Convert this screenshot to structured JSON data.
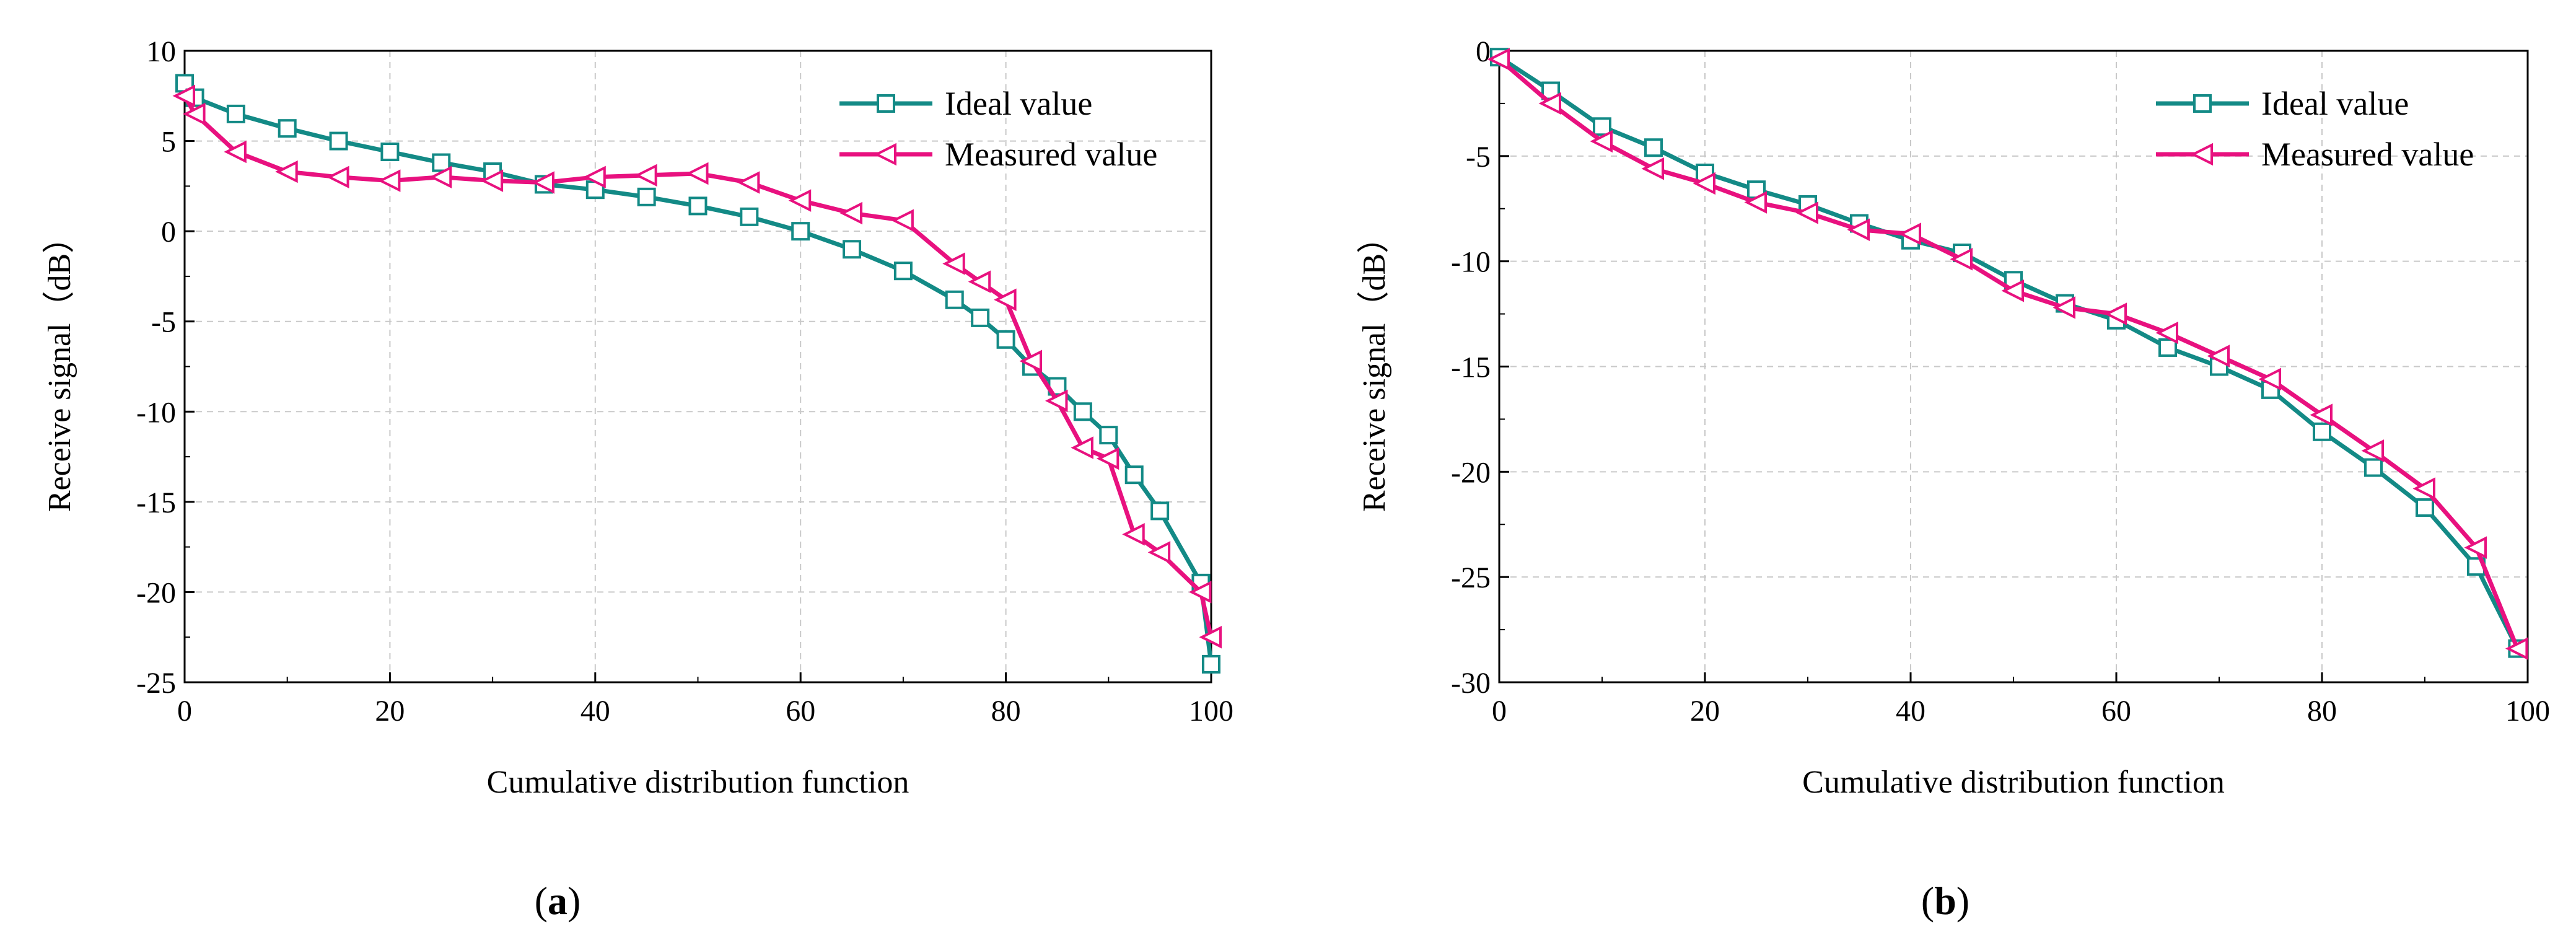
{
  "chart_data": [
    {
      "type": "line",
      "panel": "a",
      "caption": {
        "open": "(",
        "letter": "a",
        "close": ")"
      },
      "xlabel": "Cumulative distribution function",
      "ylabel": "Receive signal（dB）",
      "xlim": [
        0,
        100
      ],
      "ylim": [
        -25,
        10
      ],
      "xticks": [
        0,
        20,
        40,
        60,
        80,
        100
      ],
      "yticks": [
        10,
        5,
        0,
        -5,
        -10,
        -15,
        -20,
        -25
      ],
      "grid": true,
      "legend_position": "top-right",
      "series": [
        {
          "name": "Ideal value",
          "color": "#138a86",
          "marker": "square",
          "x": [
            0,
            1,
            5,
            10,
            15,
            20,
            25,
            30,
            35,
            40,
            45,
            50,
            55,
            60,
            65,
            70,
            75,
            77.5,
            80,
            82.5,
            85,
            87.5,
            90,
            92.5,
            95,
            99,
            100
          ],
          "y": [
            8.2,
            7.4,
            6.5,
            5.7,
            5.0,
            4.4,
            3.8,
            3.3,
            2.6,
            2.3,
            1.9,
            1.4,
            0.8,
            0.0,
            -1.0,
            -2.2,
            -3.8,
            -4.8,
            -6.0,
            -7.5,
            -8.6,
            -10.0,
            -11.3,
            -13.5,
            -15.5,
            -19.5,
            -24.0
          ]
        },
        {
          "name": "Measured value",
          "color": "#e8117f",
          "marker": "triangle-left",
          "x": [
            0,
            1,
            5,
            10,
            15,
            20,
            25,
            30,
            35,
            40,
            45,
            50,
            55,
            60,
            65,
            70,
            75,
            77.5,
            80,
            82.5,
            85,
            87.5,
            90,
            92.5,
            95,
            99,
            100
          ],
          "y": [
            7.5,
            6.5,
            4.4,
            3.3,
            3.0,
            2.8,
            3.0,
            2.8,
            2.7,
            3.0,
            3.1,
            3.2,
            2.7,
            1.7,
            1.0,
            0.6,
            -1.8,
            -2.8,
            -3.8,
            -7.2,
            -9.4,
            -12.0,
            -12.6,
            -16.8,
            -17.8,
            -20.0,
            -22.5
          ]
        }
      ]
    },
    {
      "type": "line",
      "panel": "b",
      "caption": {
        "open": "(",
        "letter": "b",
        "close": ")"
      },
      "xlabel": "Cumulative distribution function",
      "ylabel": "Receive signal（dB）",
      "xlim": [
        0,
        100
      ],
      "ylim": [
        -30,
        0
      ],
      "xticks": [
        0,
        20,
        40,
        60,
        80,
        100
      ],
      "yticks": [
        0,
        -5,
        -10,
        -15,
        -20,
        -25,
        -30
      ],
      "grid": true,
      "legend_position": "top-right",
      "series": [
        {
          "name": "Ideal value",
          "color": "#138a86",
          "marker": "square",
          "x": [
            0,
            5,
            10,
            15,
            20,
            25,
            30,
            35,
            40,
            45,
            50,
            55,
            60,
            65,
            70,
            75,
            80,
            85,
            90,
            95,
            99
          ],
          "y": [
            -0.3,
            -1.9,
            -3.6,
            -4.6,
            -5.8,
            -6.6,
            -7.3,
            -8.2,
            -9.0,
            -9.6,
            -10.9,
            -12.0,
            -12.8,
            -14.1,
            -15.0,
            -16.1,
            -18.1,
            -19.8,
            -21.7,
            -24.5,
            -28.4
          ]
        },
        {
          "name": "Measured value",
          "color": "#e8117f",
          "marker": "triangle-left",
          "x": [
            0,
            5,
            10,
            15,
            20,
            25,
            30,
            35,
            40,
            45,
            50,
            55,
            60,
            65,
            70,
            75,
            80,
            85,
            90,
            95,
            99
          ],
          "y": [
            -0.4,
            -2.5,
            -4.3,
            -5.6,
            -6.3,
            -7.2,
            -7.7,
            -8.5,
            -8.7,
            -9.9,
            -11.4,
            -12.2,
            -12.5,
            -13.4,
            -14.5,
            -15.6,
            -17.3,
            -19.0,
            -20.8,
            -23.6,
            -28.4
          ]
        }
      ]
    }
  ]
}
